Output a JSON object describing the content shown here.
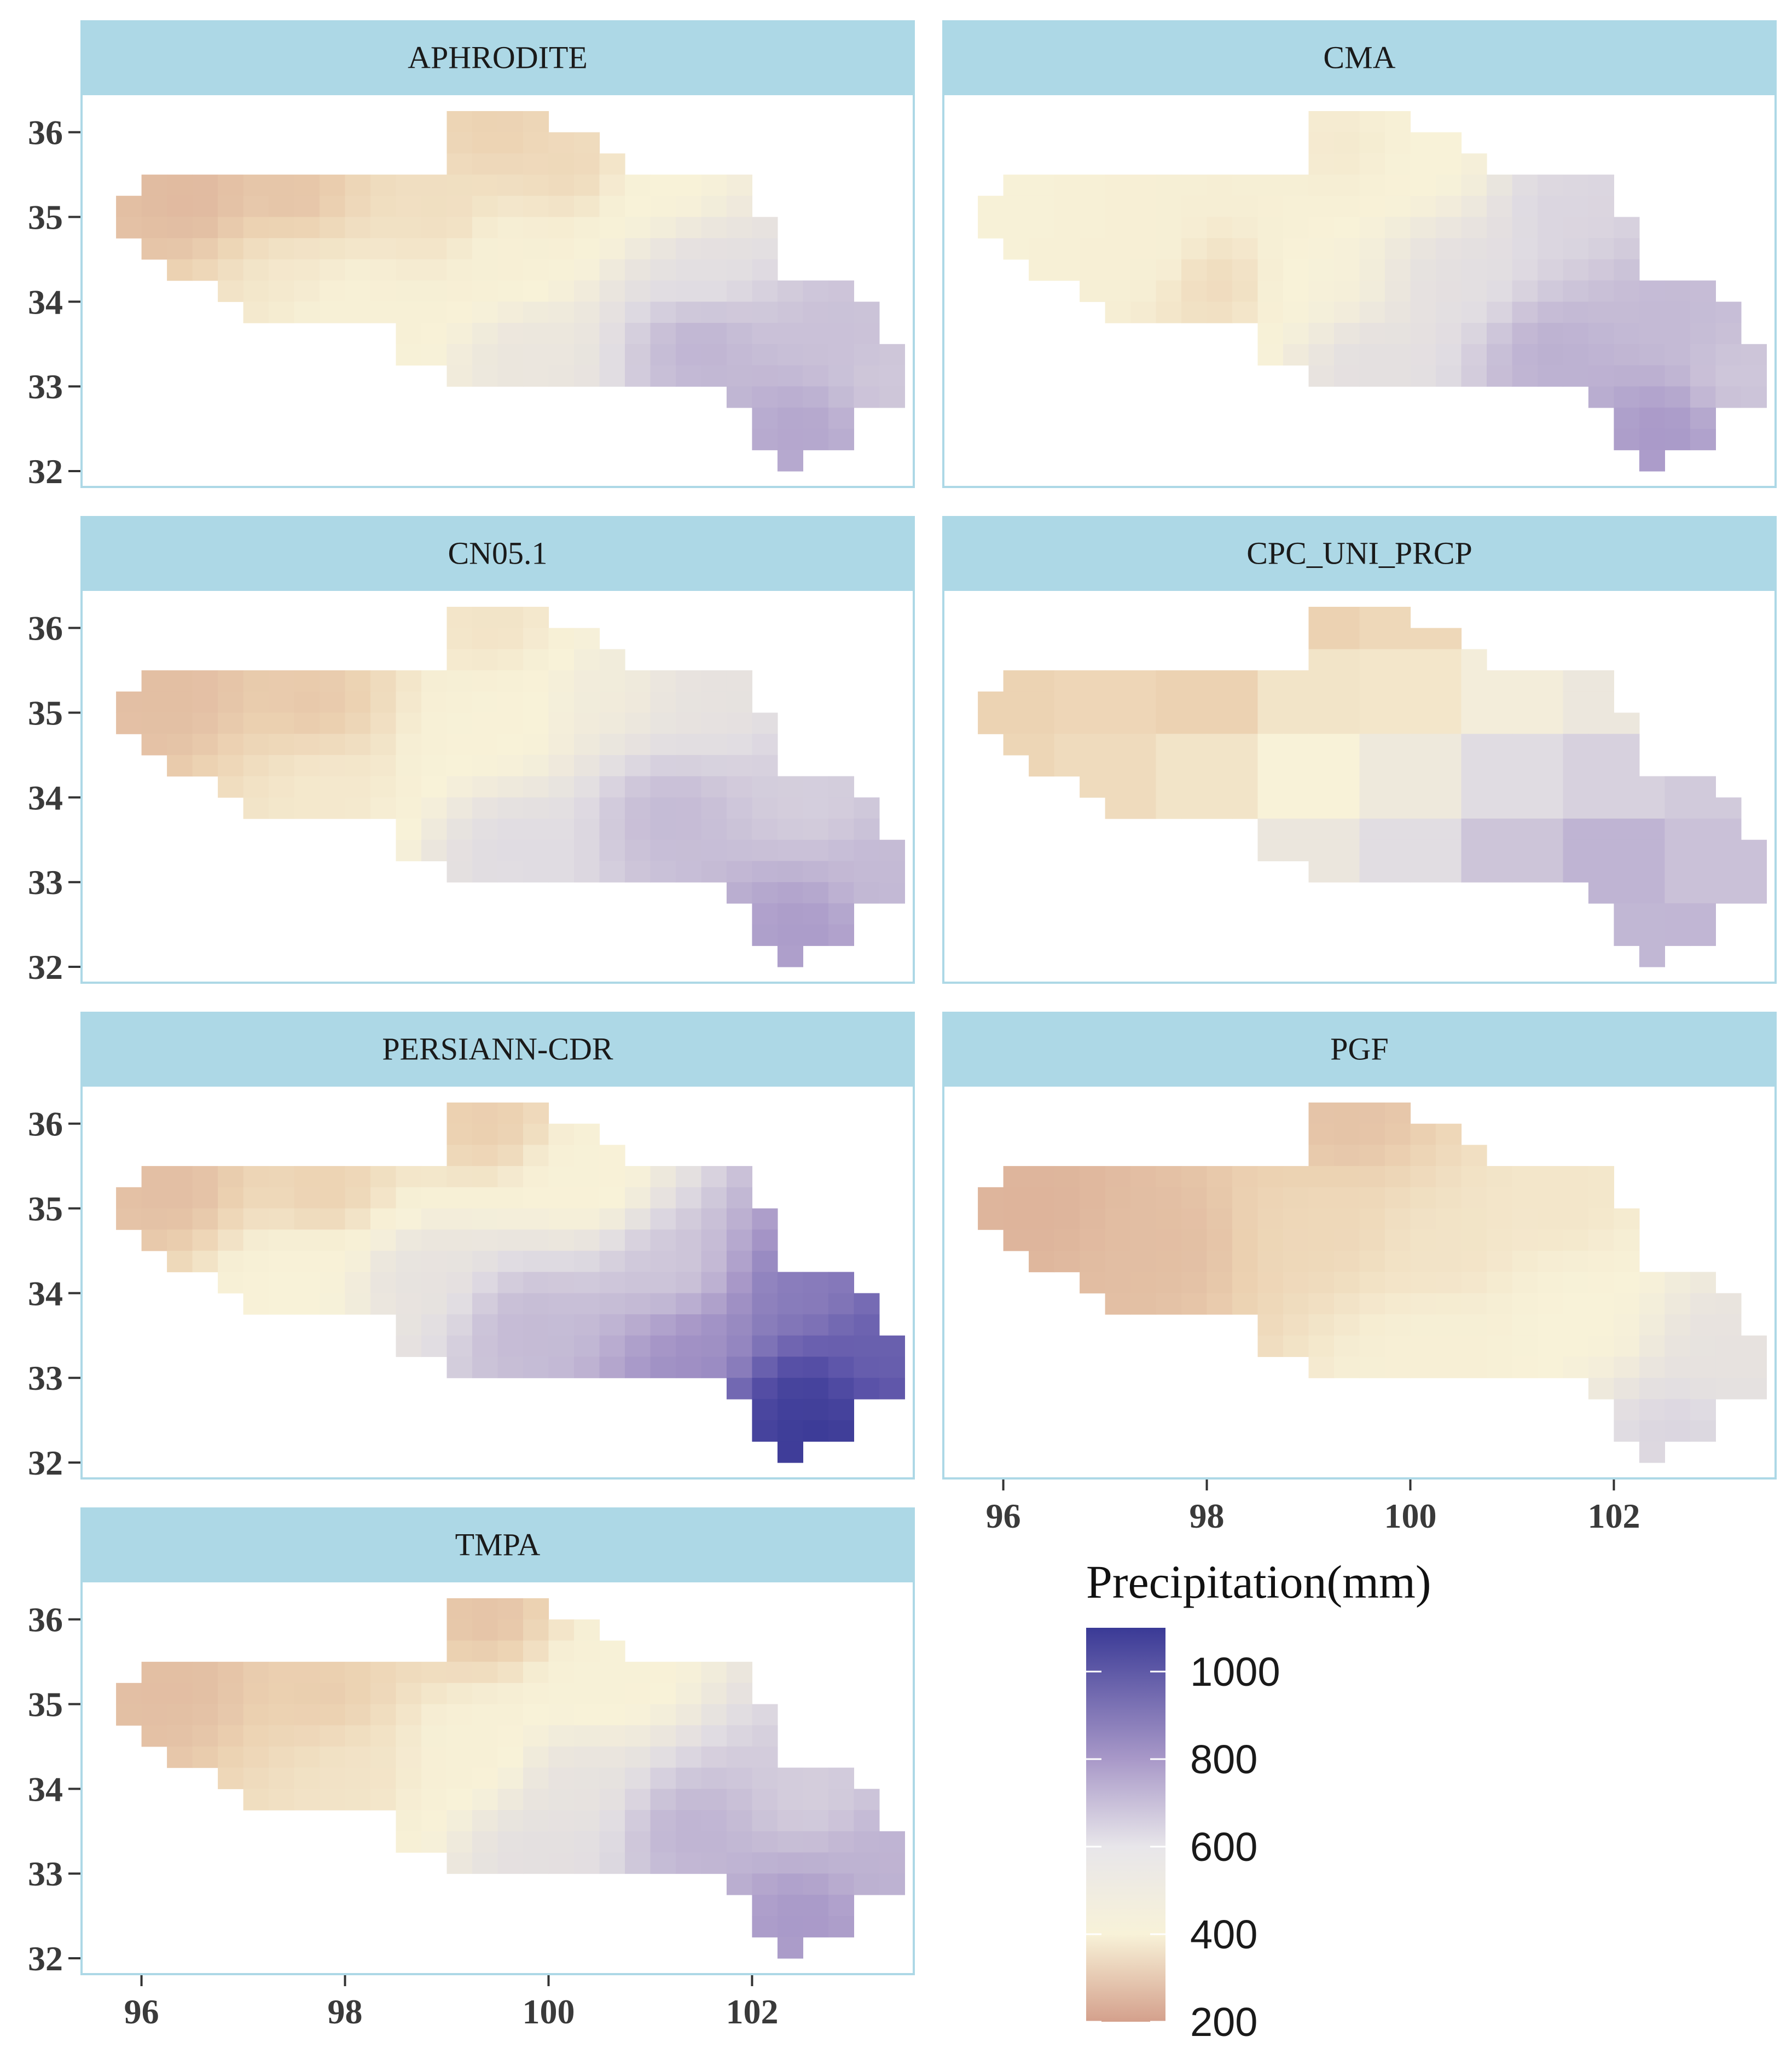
{
  "chart_data": {
    "type": "heatmap",
    "title": "",
    "xlabel": "",
    "ylabel": "",
    "x_ticks": [
      96,
      98,
      100,
      102
    ],
    "x_tick_labels": [
      "96",
      "98",
      "100",
      "102"
    ],
    "y_ticks": [
      32,
      33,
      34,
      35,
      36
    ],
    "y_tick_labels": [
      "32",
      "33",
      "34",
      "35",
      "36"
    ],
    "xlim": [
      95.4,
      103.6
    ],
    "ylim": [
      31.8,
      36.45
    ],
    "cell_size": 0.25,
    "grid": false,
    "legend": {
      "title": "Precipitation(mm)",
      "range": [
        200,
        1100
      ],
      "ticks": [
        200,
        400,
        600,
        800,
        1000
      ],
      "tick_labels": [
        "200",
        "400",
        "600",
        "800",
        "1000"
      ],
      "colors": {
        "low": "#d4a08c",
        "mid": "#f8f2d8",
        "high": "#3a3a96"
      }
    },
    "region_rows": [
      {
        "lat": 36.125,
        "lon_min": 99.125,
        "lon_max": 99.875
      },
      {
        "lat": 35.875,
        "lon_min": 99.125,
        "lon_max": 100.375
      },
      {
        "lat": 35.625,
        "lon_min": 99.125,
        "lon_max": 100.625
      },
      {
        "lat": 35.375,
        "lon_min": 96.125,
        "lon_max": 101.875
      },
      {
        "lat": 35.125,
        "lon_min": 95.875,
        "lon_max": 101.875
      },
      {
        "lat": 34.875,
        "lon_min": 95.875,
        "lon_max": 102.125
      },
      {
        "lat": 34.625,
        "lon_min": 96.125,
        "lon_max": 102.125
      },
      {
        "lat": 34.375,
        "lon_min": 96.375,
        "lon_max": 102.125
      },
      {
        "lat": 34.125,
        "lon_min": 96.875,
        "lon_max": 102.875
      },
      {
        "lat": 33.875,
        "lon_min": 97.125,
        "lon_max": 103.125
      },
      {
        "lat": 33.625,
        "lon_min": 98.625,
        "lon_max": 103.125
      },
      {
        "lat": 33.375,
        "lon_min": 98.625,
        "lon_max": 103.375
      },
      {
        "lat": 33.125,
        "lon_min": 99.125,
        "lon_max": 103.375
      },
      {
        "lat": 32.875,
        "lon_min": 101.875,
        "lon_max": 103.375
      },
      {
        "lat": 32.625,
        "lon_min": 102.125,
        "lon_max": 102.875
      },
      {
        "lat": 32.375,
        "lon_min": 102.125,
        "lon_max": 102.875
      },
      {
        "lat": 32.125,
        "lon_min": 102.375,
        "lon_max": 102.375
      }
    ],
    "panels": [
      {
        "name": "APHRODITE",
        "block": 1,
        "anchors": [
          {
            "lon": 96.5,
            "lat": 35.2,
            "value": 250
          },
          {
            "lon": 97.5,
            "lat": 35.2,
            "value": 270
          },
          {
            "lon": 99.5,
            "lat": 36.0,
            "value": 300
          },
          {
            "lon": 100.2,
            "lat": 35.6,
            "value": 320
          },
          {
            "lon": 99.0,
            "lat": 35.0,
            "value": 340
          },
          {
            "lon": 97.5,
            "lat": 34.3,
            "value": 380
          },
          {
            "lon": 98.0,
            "lat": 33.9,
            "value": 440
          },
          {
            "lon": 99.5,
            "lat": 34.6,
            "value": 420
          },
          {
            "lon": 101.2,
            "lat": 35.3,
            "value": 460
          },
          {
            "lon": 99.8,
            "lat": 33.4,
            "value": 540
          },
          {
            "lon": 101.5,
            "lat": 34.4,
            "value": 580
          },
          {
            "lon": 101.5,
            "lat": 33.5,
            "value": 720
          },
          {
            "lon": 102.8,
            "lat": 33.6,
            "value": 680
          },
          {
            "lon": 103.3,
            "lat": 33.1,
            "value": 660
          },
          {
            "lon": 102.5,
            "lat": 32.5,
            "value": 760
          }
        ]
      },
      {
        "name": "CMA",
        "block": 1,
        "anchors": [
          {
            "lon": 96.2,
            "lat": 35.0,
            "value": 440
          },
          {
            "lon": 97.4,
            "lat": 34.6,
            "value": 420
          },
          {
            "lon": 98.1,
            "lat": 34.2,
            "value": 330
          },
          {
            "lon": 99.4,
            "lat": 35.8,
            "value": 380
          },
          {
            "lon": 100.2,
            "lat": 35.6,
            "value": 460
          },
          {
            "lon": 99.2,
            "lat": 34.2,
            "value": 470
          },
          {
            "lon": 100.5,
            "lat": 34.3,
            "value": 580
          },
          {
            "lon": 101.5,
            "lat": 35.1,
            "value": 620
          },
          {
            "lon": 99.6,
            "lat": 33.3,
            "value": 580
          },
          {
            "lon": 101.4,
            "lat": 33.4,
            "value": 730
          },
          {
            "lon": 102.5,
            "lat": 33.8,
            "value": 700
          },
          {
            "lon": 103.2,
            "lat": 33.1,
            "value": 660
          },
          {
            "lon": 102.5,
            "lat": 32.5,
            "value": 800
          }
        ]
      },
      {
        "name": "CN05.1",
        "block": 1,
        "anchors": [
          {
            "lon": 96.3,
            "lat": 35.2,
            "value": 260
          },
          {
            "lon": 97.7,
            "lat": 35.1,
            "value": 280
          },
          {
            "lon": 97.8,
            "lat": 34.1,
            "value": 380
          },
          {
            "lon": 99.5,
            "lat": 36.0,
            "value": 360
          },
          {
            "lon": 99.5,
            "lat": 34.8,
            "value": 450
          },
          {
            "lon": 100.6,
            "lat": 35.3,
            "value": 500
          },
          {
            "lon": 101.5,
            "lat": 35.2,
            "value": 560
          },
          {
            "lon": 99.7,
            "lat": 33.4,
            "value": 600
          },
          {
            "lon": 101.2,
            "lat": 33.8,
            "value": 700
          },
          {
            "lon": 102.6,
            "lat": 33.9,
            "value": 640
          },
          {
            "lon": 103.2,
            "lat": 33.1,
            "value": 700
          },
          {
            "lon": 102.5,
            "lat": 32.5,
            "value": 790
          }
        ]
      },
      {
        "name": "CPC_UNI_PRCP",
        "block": 4,
        "anchors": [
          {
            "lon": 96.3,
            "lat": 35.0,
            "value": 300
          },
          {
            "lon": 97.2,
            "lat": 34.6,
            "value": 330
          },
          {
            "lon": 98.0,
            "lat": 35.0,
            "value": 290
          },
          {
            "lon": 97.8,
            "lat": 34.0,
            "value": 380
          },
          {
            "lon": 99.4,
            "lat": 36.0,
            "value": 280
          },
          {
            "lon": 100.0,
            "lat": 35.5,
            "value": 360
          },
          {
            "lon": 99.5,
            "lat": 34.6,
            "value": 480
          },
          {
            "lon": 101.4,
            "lat": 35.0,
            "value": 520
          },
          {
            "lon": 99.6,
            "lat": 33.6,
            "value": 600
          },
          {
            "lon": 100.6,
            "lat": 33.8,
            "value": 620
          },
          {
            "lon": 101.5,
            "lat": 33.5,
            "value": 760
          },
          {
            "lon": 102.5,
            "lat": 33.6,
            "value": 650
          },
          {
            "lon": 103.2,
            "lat": 33.1,
            "value": 690
          },
          {
            "lon": 102.5,
            "lat": 32.5,
            "value": 720
          }
        ]
      },
      {
        "name": "PERSIANN-CDR",
        "block": 1,
        "anchors": [
          {
            "lon": 96.3,
            "lat": 35.2,
            "value": 260
          },
          {
            "lon": 97.8,
            "lat": 35.2,
            "value": 300
          },
          {
            "lon": 99.4,
            "lat": 36.0,
            "value": 290
          },
          {
            "lon": 100.4,
            "lat": 35.3,
            "value": 440
          },
          {
            "lon": 97.5,
            "lat": 34.1,
            "value": 460
          },
          {
            "lon": 98.7,
            "lat": 34.2,
            "value": 560
          },
          {
            "lon": 99.8,
            "lat": 33.6,
            "value": 700
          },
          {
            "lon": 101.2,
            "lat": 34.3,
            "value": 660
          },
          {
            "lon": 101.5,
            "lat": 33.3,
            "value": 820
          },
          {
            "lon": 102.5,
            "lat": 34.0,
            "value": 880
          },
          {
            "lon": 103.2,
            "lat": 33.3,
            "value": 960
          },
          {
            "lon": 102.5,
            "lat": 32.7,
            "value": 1080
          },
          {
            "lon": 102.6,
            "lat": 32.3,
            "value": 1100
          }
        ]
      },
      {
        "name": "PGF",
        "block": 1,
        "anchors": [
          {
            "lon": 96.3,
            "lat": 35.0,
            "value": 240
          },
          {
            "lon": 97.5,
            "lat": 34.6,
            "value": 260
          },
          {
            "lon": 99.4,
            "lat": 36.0,
            "value": 270
          },
          {
            "lon": 99.2,
            "lat": 34.8,
            "value": 320
          },
          {
            "lon": 100.3,
            "lat": 34.5,
            "value": 360
          },
          {
            "lon": 101.5,
            "lat": 35.0,
            "value": 370
          },
          {
            "lon": 100.2,
            "lat": 33.3,
            "value": 420
          },
          {
            "lon": 101.8,
            "lat": 33.6,
            "value": 460
          },
          {
            "lon": 103.0,
            "lat": 33.3,
            "value": 560
          },
          {
            "lon": 102.6,
            "lat": 32.4,
            "value": 620
          }
        ]
      },
      {
        "name": "TMPA",
        "block": 1,
        "anchors": [
          {
            "lon": 96.3,
            "lat": 35.2,
            "value": 260
          },
          {
            "lon": 97.8,
            "lat": 35.1,
            "value": 290
          },
          {
            "lon": 99.4,
            "lat": 36.0,
            "value": 270
          },
          {
            "lon": 98.1,
            "lat": 34.2,
            "value": 360
          },
          {
            "lon": 99.3,
            "lat": 34.4,
            "value": 430
          },
          {
            "lon": 100.6,
            "lat": 35.3,
            "value": 440
          },
          {
            "lon": 100.2,
            "lat": 34.0,
            "value": 560
          },
          {
            "lon": 99.9,
            "lat": 33.3,
            "value": 580
          },
          {
            "lon": 101.4,
            "lat": 33.5,
            "value": 720
          },
          {
            "lon": 102.6,
            "lat": 33.9,
            "value": 640
          },
          {
            "lon": 103.2,
            "lat": 33.2,
            "value": 720
          },
          {
            "lon": 102.5,
            "lat": 32.5,
            "value": 800
          }
        ]
      }
    ]
  }
}
